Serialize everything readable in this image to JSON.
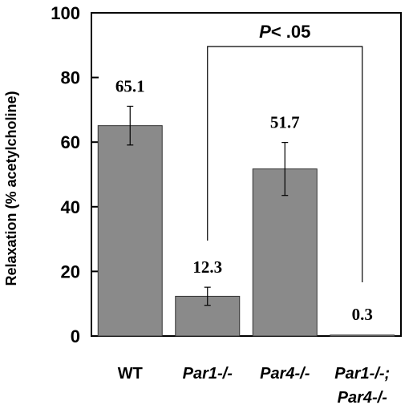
{
  "chart_data": {
    "type": "bar",
    "categories": [
      "WT",
      "Par1-/-",
      "Par4-/-",
      "Par1-/-;\nPar4-/-"
    ],
    "category_italic": [
      false,
      true,
      true,
      true
    ],
    "values": [
      65.1,
      12.3,
      51.7,
      0.3
    ],
    "value_labels": [
      "65.1",
      "12.3",
      "51.7",
      "0.3"
    ],
    "error": [
      6,
      2.8,
      8.2,
      0.2
    ],
    "ylabel": "Relaxation (% acetylcholine)",
    "xlabel": "",
    "ylim": [
      0,
      100
    ],
    "yticks": [
      0,
      20,
      40,
      60,
      80,
      100
    ],
    "annotation": {
      "text": "P< .05",
      "from_category": 1,
      "to_category": 3
    },
    "colors": {
      "bar": "#8a8a8a",
      "axis": "#000000"
    }
  }
}
